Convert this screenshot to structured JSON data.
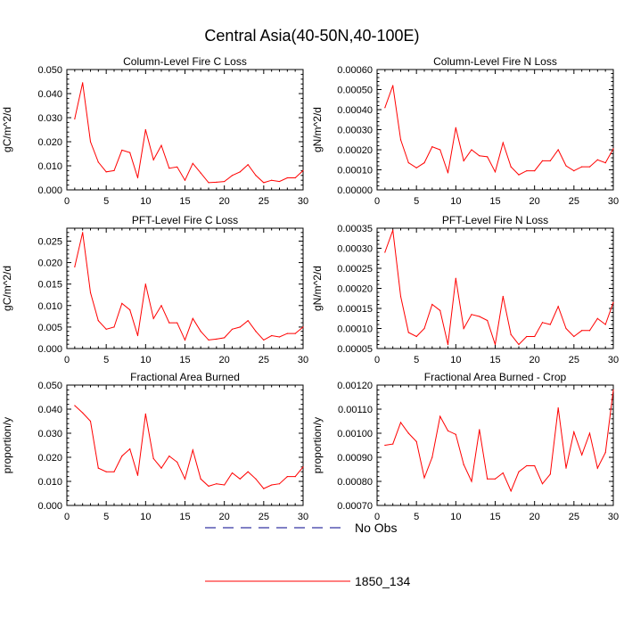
{
  "title": "Central Asia(40-50N,40-100E)",
  "colors": {
    "series": "#ff0000",
    "obs": "#00008b",
    "axis": "#000000"
  },
  "legend": {
    "position": "bottom-center",
    "entries": [
      {
        "label": "No Obs",
        "style": "dashed",
        "color": "#00008b"
      },
      {
        "label": "1850_134",
        "style": "solid",
        "color": "#ff0000"
      }
    ]
  },
  "chart_data": [
    {
      "type": "line",
      "title": "Column-Level Fire C Loss",
      "ylabel": "gC/m^2/d",
      "xlabel": "",
      "xlim": [
        0,
        30
      ],
      "ylim": [
        0,
        0.05
      ],
      "xticks": [
        0,
        5,
        10,
        15,
        20,
        25,
        30
      ],
      "yticks": [
        "0.000",
        "0.010",
        "0.020",
        "0.030",
        "0.040",
        "0.050"
      ],
      "series": [
        {
          "name": "1850_134",
          "x": [
            1,
            2,
            3,
            4,
            5,
            6,
            7,
            8,
            9,
            10,
            11,
            12,
            13,
            14,
            15,
            16,
            17,
            18,
            19,
            20,
            21,
            22,
            23,
            24,
            25,
            26,
            27,
            28,
            29,
            30
          ],
          "values": [
            0.0295,
            0.0445,
            0.02,
            0.0115,
            0.0075,
            0.008,
            0.0165,
            0.0155,
            0.005,
            0.025,
            0.0125,
            0.0185,
            0.009,
            0.0095,
            0.004,
            0.011,
            0.007,
            0.003,
            0.0032,
            0.0035,
            0.006,
            0.0075,
            0.0105,
            0.006,
            0.003,
            0.004,
            0.0035,
            0.005,
            0.005,
            0.008
          ]
        }
      ]
    },
    {
      "type": "line",
      "title": "Column-Level Fire N Loss",
      "ylabel": "gN/m^2/d",
      "xlabel": "",
      "xlim": [
        0,
        30
      ],
      "ylim": [
        0,
        0.0006
      ],
      "xticks": [
        0,
        5,
        10,
        15,
        20,
        25,
        30
      ],
      "yticks": [
        "0.00000",
        "0.00010",
        "0.00020",
        "0.00030",
        "0.00040",
        "0.00050",
        "0.00060"
      ],
      "series": [
        {
          "name": "1850_134",
          "x": [
            1,
            2,
            3,
            4,
            5,
            6,
            7,
            8,
            9,
            10,
            11,
            12,
            13,
            14,
            15,
            16,
            17,
            18,
            19,
            20,
            21,
            22,
            23,
            24,
            25,
            26,
            27,
            28,
            29,
            30
          ],
          "values": [
            0.00041,
            0.00052,
            0.00025,
            0.000135,
            0.00011,
            0.000135,
            0.000215,
            0.0002,
            8.5e-05,
            0.00031,
            0.000145,
            0.0002,
            0.00017,
            0.000165,
            9e-05,
            0.000235,
            0.000115,
            7.5e-05,
            9.5e-05,
            9.5e-05,
            0.000145,
            0.000145,
            0.0002,
            0.00012,
            9.5e-05,
            0.000115,
            0.000115,
            0.00015,
            0.000135,
            0.000205
          ]
        }
      ]
    },
    {
      "type": "line",
      "title": "PFT-Level Fire C Loss",
      "ylabel": "gC/m^2/d",
      "xlabel": "",
      "xlim": [
        0,
        30
      ],
      "ylim": [
        0,
        0.028
      ],
      "xticks": [
        0,
        5,
        10,
        15,
        20,
        25,
        30
      ],
      "yticks": [
        "0.000",
        "0.005",
        "0.010",
        "0.015",
        "0.020",
        "0.025"
      ],
      "series": [
        {
          "name": "1850_134",
          "x": [
            1,
            2,
            3,
            4,
            5,
            6,
            7,
            8,
            9,
            10,
            11,
            12,
            13,
            14,
            15,
            16,
            17,
            18,
            19,
            20,
            21,
            22,
            23,
            24,
            25,
            26,
            27,
            28,
            29,
            30
          ],
          "values": [
            0.019,
            0.027,
            0.013,
            0.0065,
            0.0045,
            0.005,
            0.0105,
            0.009,
            0.003,
            0.015,
            0.007,
            0.01,
            0.006,
            0.006,
            0.002,
            0.007,
            0.004,
            0.002,
            0.0022,
            0.0025,
            0.0045,
            0.005,
            0.0065,
            0.004,
            0.002,
            0.003,
            0.0027,
            0.0035,
            0.0035,
            0.005
          ]
        }
      ]
    },
    {
      "type": "line",
      "title": "PFT-Level Fire N Loss",
      "ylabel": "gN/m^2/d",
      "xlabel": "",
      "xlim": [
        0,
        30
      ],
      "ylim": [
        5e-05,
        0.00035
      ],
      "xticks": [
        0,
        5,
        10,
        15,
        20,
        25,
        30
      ],
      "yticks": [
        "0.00005",
        "0.00010",
        "0.00015",
        "0.00020",
        "0.00025",
        "0.00030",
        "0.00035"
      ],
      "series": [
        {
          "name": "1850_134",
          "x": [
            1,
            2,
            3,
            4,
            5,
            6,
            7,
            8,
            9,
            10,
            11,
            12,
            13,
            14,
            15,
            16,
            17,
            18,
            19,
            20,
            21,
            22,
            23,
            24,
            25,
            26,
            27,
            28,
            29,
            30
          ],
          "values": [
            0.00029,
            0.000345,
            0.00018,
            9e-05,
            8e-05,
            0.0001,
            0.00016,
            0.000145,
            6e-05,
            0.000225,
            0.0001,
            0.000135,
            0.00013,
            0.00012,
            6e-05,
            0.00018,
            8.5e-05,
            6e-05,
            8e-05,
            8e-05,
            0.000115,
            0.00011,
            0.000155,
            0.0001,
            8e-05,
            9.5e-05,
            9.5e-05,
            0.000125,
            0.00011,
            0.000165
          ]
        }
      ]
    },
    {
      "type": "line",
      "title": "Fractional Area Burned",
      "ylabel": "proportion/y",
      "xlabel": "",
      "xlim": [
        0,
        30
      ],
      "ylim": [
        0,
        0.05
      ],
      "xticks": [
        0,
        5,
        10,
        15,
        20,
        25,
        30
      ],
      "yticks": [
        "0.000",
        "0.010",
        "0.020",
        "0.030",
        "0.040",
        "0.050"
      ],
      "series": [
        {
          "name": "1850_134",
          "x": [
            1,
            2,
            3,
            4,
            5,
            6,
            7,
            8,
            9,
            10,
            11,
            12,
            13,
            14,
            15,
            16,
            17,
            18,
            19,
            20,
            21,
            22,
            23,
            24,
            25,
            26,
            27,
            28,
            29,
            30
          ],
          "values": [
            0.0415,
            0.0385,
            0.035,
            0.0155,
            0.014,
            0.014,
            0.0205,
            0.0235,
            0.0125,
            0.038,
            0.0195,
            0.0155,
            0.0205,
            0.018,
            0.011,
            0.023,
            0.011,
            0.008,
            0.009,
            0.0085,
            0.0135,
            0.011,
            0.014,
            0.011,
            0.007,
            0.0085,
            0.009,
            0.012,
            0.012,
            0.016
          ]
        }
      ]
    },
    {
      "type": "line",
      "title": "Fractional Area Burned - Crop",
      "ylabel": "proportion/y",
      "xlabel": "",
      "xlim": [
        0,
        30
      ],
      "ylim": [
        0.0007,
        0.0012
      ],
      "xticks": [
        0,
        5,
        10,
        15,
        20,
        25,
        30
      ],
      "yticks": [
        "0.00070",
        "0.00080",
        "0.00090",
        "0.00100",
        "0.00110",
        "0.00120"
      ],
      "series": [
        {
          "name": "1850_134",
          "x": [
            1,
            2,
            3,
            4,
            5,
            6,
            7,
            8,
            9,
            10,
            11,
            12,
            13,
            14,
            15,
            16,
            17,
            18,
            19,
            20,
            21,
            22,
            23,
            24,
            25,
            26,
            27,
            28,
            29,
            30
          ],
          "values": [
            0.00095,
            0.000955,
            0.001045,
            0.001,
            0.000965,
            0.000815,
            0.0009,
            0.00107,
            0.00101,
            0.000995,
            0.00087,
            0.0008,
            0.001015,
            0.00081,
            0.00081,
            0.000835,
            0.00076,
            0.00084,
            0.000865,
            0.000865,
            0.00079,
            0.00083,
            0.001105,
            0.000855,
            0.001005,
            0.00091,
            0.001,
            0.000855,
            0.00092,
            0.00118
          ]
        }
      ]
    }
  ]
}
